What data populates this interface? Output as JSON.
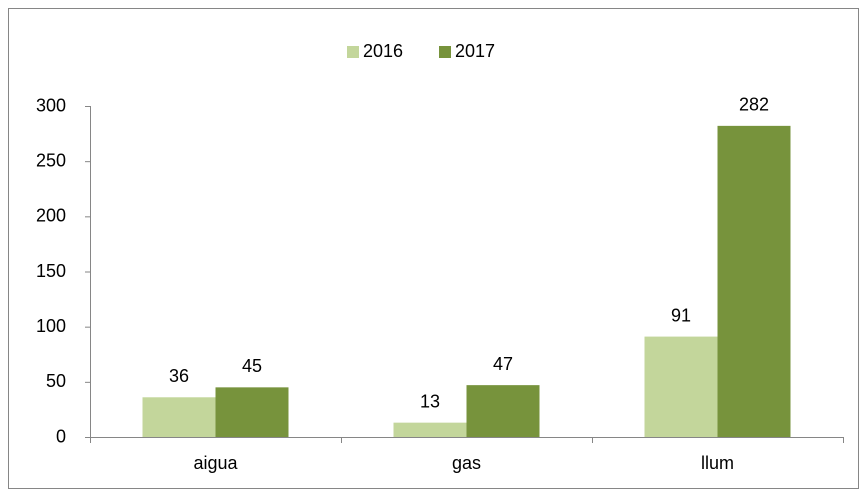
{
  "chart_data": {
    "type": "bar",
    "categories": [
      "aigua",
      "gas",
      "llum"
    ],
    "series": [
      {
        "name": "2016",
        "color": "#c3d69b",
        "values": [
          36,
          13,
          91
        ]
      },
      {
        "name": "2017",
        "color": "#77933c",
        "values": [
          45,
          47,
          282
        ]
      }
    ],
    "ylim": [
      0,
      300
    ],
    "yticks": [
      0,
      50,
      100,
      150,
      200,
      250,
      300
    ],
    "grid": false,
    "legend": "top",
    "data_labels": true
  }
}
